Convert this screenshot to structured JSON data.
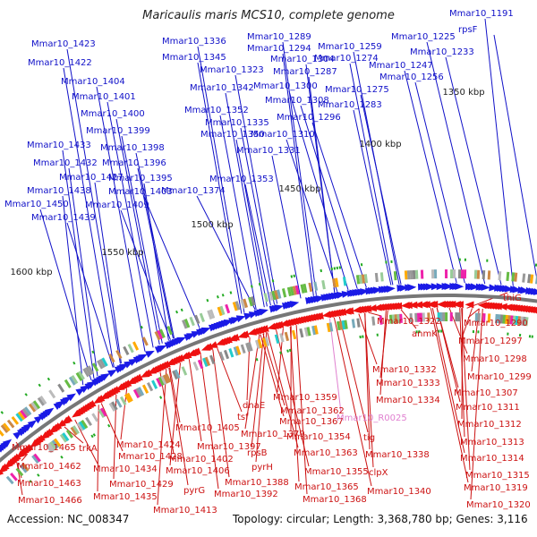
{
  "title": "Maricaulis maris MCS10, complete genome",
  "footer": {
    "accession": "Accession: NC_008347",
    "topology": "Topology: circular; Length: 3,368,780 bp; Genes: 3,116"
  },
  "colors": {
    "forward_label": "#1010c8",
    "reverse_label": "#cc1111",
    "rna_label": "#e080d0",
    "forward_arrow": "#1a1ae6",
    "reverse_arrow": "#ee1111",
    "backbone": "#777777"
  },
  "ticks": [
    "1350 kbp",
    "1400 kbp",
    "1450 kbp",
    "1500 kbp",
    "1550 kbp",
    "1600 kbp"
  ],
  "forward_labels": [
    "Mmar10_1191",
    "rpsF",
    "Mmar10_1225",
    "Mmar10_1233",
    "Mmar10_1247",
    "Mmar10_1256",
    "Mmar10_1259",
    "Mmar10_1274",
    "Mmar10_1275",
    "Mmar10_1283",
    "Mmar10_1289",
    "Mmar10_1294",
    "Mmar10_1304",
    "Mmar10_1287",
    "Mmar10_1300",
    "Mmar10_1308",
    "Mmar10_1296",
    "Mmar10_1310",
    "Mmar10_1336",
    "Mmar10_1345",
    "Mmar10_1323",
    "Mmar10_1342",
    "Mmar10_1352",
    "Mmar10_1335",
    "Mmar10_1350",
    "Mmar10_1331",
    "Mmar10_1353",
    "Mmar10_1374",
    "Mmar10_1423",
    "Mmar10_1422",
    "Mmar10_1404",
    "Mmar10_1401",
    "Mmar10_1400",
    "Mmar10_1399",
    "Mmar10_1398",
    "Mmar10_1396",
    "Mmar10_1433",
    "Mmar10_1432",
    "Mmar10_1427",
    "Mmar10_1395",
    "Mmar10_1438",
    "Mmar10_1403",
    "Mmar10_1450",
    "Mmar10_1409",
    "Mmar10_1439"
  ],
  "reverse_labels": [
    "thiG",
    "Mmar10_1322",
    "Mmar10_1290",
    "anmK",
    "Mmar10_1297",
    "Mmar10_1298",
    "Mmar10_1299",
    "Mmar10_1332",
    "Mmar10_1333",
    "Mmar10_1307",
    "Mmar10_1334",
    "Mmar10_1311",
    "Mmar10_1359",
    "Mmar10_1362",
    "Mmar10_1312",
    "Mmar10_1367",
    "dnaE",
    "tsf",
    "Mmar10_1354",
    "tig",
    "Mmar10_1313",
    "Mmar10_1314",
    "Mmar10_1338",
    "Mmar10_1363",
    "Mmar10_1315",
    "Mmar10_1355",
    "clpX",
    "Mmar10_1319",
    "Mmar10_1365",
    "Mmar10_1340",
    "Mmar10_1368",
    "Mmar10_1320",
    "Mmar10_1405",
    "Mmar10_1379",
    "Mmar10_1397",
    "rpsB",
    "Mmar10_1402",
    "pyrH",
    "Mmar10_1388",
    "Mmar10_1406",
    "Mmar10_1392",
    "Mmar10_1413",
    "pyrG",
    "Mmar10_1465",
    "trkA",
    "Mmar10_1424",
    "Mmar10_1428",
    "Mmar10_1462",
    "Mmar10_1434",
    "Mmar10_1429",
    "Mmar10_1463",
    "Mmar10_1435",
    "Mmar10_1466"
  ],
  "rna_labels": [
    "Mmar10_R0025"
  ]
}
